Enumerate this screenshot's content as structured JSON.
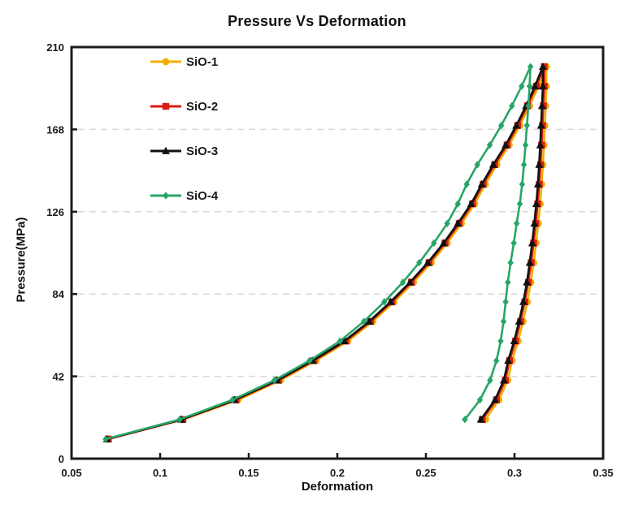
{
  "chart_data": {
    "type": "line",
    "title": "Pressure Vs Deformation",
    "xlabel": "Deformation",
    "ylabel": "Pressure(MPa)",
    "xlim": [
      0.05,
      0.35
    ],
    "ylim": [
      0,
      210
    ],
    "x_ticks": [
      0.05,
      0.1,
      0.15,
      0.2,
      0.25,
      0.3,
      0.35
    ],
    "x_tick_labels": [
      "0.05",
      "0.1",
      "0.15",
      "0.2",
      "0.25",
      "0.3",
      "0.35"
    ],
    "y_ticks": [
      0,
      42,
      84,
      126,
      168,
      210
    ],
    "y_tick_labels": [
      "0",
      "42",
      "84",
      "126",
      "168",
      "210"
    ],
    "grid": "horizontal-dashed",
    "grid_color": "#d9d9d9",
    "axis_color": "#1a1a1a",
    "legend_position": "upper-left-inside",
    "curve_shape": "loading-unloading hysteresis loop",
    "series": [
      {
        "name": "SiO-1",
        "color": "#F0B000",
        "marker": "circle",
        "points": [
          [
            0.0705,
            10
          ],
          [
            0.113,
            20
          ],
          [
            0.144,
            30
          ],
          [
            0.168,
            40
          ],
          [
            0.188,
            50
          ],
          [
            0.206,
            60
          ],
          [
            0.22,
            70
          ],
          [
            0.232,
            80
          ],
          [
            0.243,
            90
          ],
          [
            0.253,
            100
          ],
          [
            0.262,
            110
          ],
          [
            0.27,
            120
          ],
          [
            0.2775,
            130
          ],
          [
            0.2835,
            140
          ],
          [
            0.29,
            150
          ],
          [
            0.297,
            160
          ],
          [
            0.303,
            170
          ],
          [
            0.3085,
            180
          ],
          [
            0.3135,
            190
          ],
          [
            0.318,
            200
          ],
          [
            0.318,
            190
          ],
          [
            0.3176,
            180
          ],
          [
            0.3171,
            170
          ],
          [
            0.3166,
            160
          ],
          [
            0.316,
            150
          ],
          [
            0.3153,
            140
          ],
          [
            0.3145,
            130
          ],
          [
            0.3134,
            120
          ],
          [
            0.3122,
            110
          ],
          [
            0.3108,
            100
          ],
          [
            0.3092,
            90
          ],
          [
            0.3072,
            80
          ],
          [
            0.3048,
            70
          ],
          [
            0.302,
            60
          ],
          [
            0.2986,
            50
          ],
          [
            0.2962,
            40
          ],
          [
            0.2912,
            30
          ],
          [
            0.2836,
            20
          ]
        ]
      },
      {
        "name": "SiO-2",
        "color": "#D81E10",
        "marker": "square",
        "points": [
          [
            0.0708,
            10
          ],
          [
            0.1128,
            20
          ],
          [
            0.1428,
            30
          ],
          [
            0.1668,
            40
          ],
          [
            0.1868,
            50
          ],
          [
            0.2048,
            60
          ],
          [
            0.2188,
            70
          ],
          [
            0.2308,
            80
          ],
          [
            0.2418,
            90
          ],
          [
            0.2518,
            100
          ],
          [
            0.2608,
            110
          ],
          [
            0.2688,
            120
          ],
          [
            0.2763,
            130
          ],
          [
            0.2823,
            140
          ],
          [
            0.2888,
            150
          ],
          [
            0.2958,
            160
          ],
          [
            0.3018,
            170
          ],
          [
            0.3073,
            180
          ],
          [
            0.3123,
            190
          ],
          [
            0.3168,
            200
          ],
          [
            0.3168,
            190
          ],
          [
            0.3163,
            180
          ],
          [
            0.3158,
            170
          ],
          [
            0.3153,
            160
          ],
          [
            0.3147,
            150
          ],
          [
            0.314,
            140
          ],
          [
            0.3131,
            130
          ],
          [
            0.312,
            120
          ],
          [
            0.3108,
            110
          ],
          [
            0.3094,
            100
          ],
          [
            0.3078,
            90
          ],
          [
            0.3058,
            80
          ],
          [
            0.3034,
            70
          ],
          [
            0.3006,
            60
          ],
          [
            0.2972,
            50
          ],
          [
            0.2948,
            40
          ],
          [
            0.2898,
            30
          ],
          [
            0.2818,
            20
          ]
        ]
      },
      {
        "name": "SiO-3",
        "color": "#111111",
        "marker": "triangle",
        "points": [
          [
            0.07,
            10
          ],
          [
            0.112,
            20
          ],
          [
            0.142,
            30
          ],
          [
            0.166,
            40
          ],
          [
            0.186,
            50
          ],
          [
            0.204,
            60
          ],
          [
            0.218,
            70
          ],
          [
            0.23,
            80
          ],
          [
            0.241,
            90
          ],
          [
            0.251,
            100
          ],
          [
            0.26,
            110
          ],
          [
            0.268,
            120
          ],
          [
            0.2755,
            130
          ],
          [
            0.2815,
            140
          ],
          [
            0.288,
            150
          ],
          [
            0.295,
            160
          ],
          [
            0.301,
            170
          ],
          [
            0.3065,
            180
          ],
          [
            0.3115,
            190
          ],
          [
            0.316,
            200
          ],
          [
            0.316,
            190
          ],
          [
            0.3155,
            180
          ],
          [
            0.315,
            170
          ],
          [
            0.3145,
            160
          ],
          [
            0.3139,
            150
          ],
          [
            0.3132,
            140
          ],
          [
            0.3123,
            130
          ],
          [
            0.3112,
            120
          ],
          [
            0.31,
            110
          ],
          [
            0.3086,
            100
          ],
          [
            0.307,
            90
          ],
          [
            0.305,
            80
          ],
          [
            0.3026,
            70
          ],
          [
            0.2998,
            60
          ],
          [
            0.2964,
            50
          ],
          [
            0.294,
            40
          ],
          [
            0.289,
            30
          ],
          [
            0.281,
            20
          ]
        ]
      },
      {
        "name": "SiO-4",
        "color": "#27A567",
        "marker": "diamond",
        "points": [
          [
            0.0693,
            10
          ],
          [
            0.111,
            20
          ],
          [
            0.1408,
            30
          ],
          [
            0.1645,
            40
          ],
          [
            0.1843,
            50
          ],
          [
            0.2015,
            60
          ],
          [
            0.215,
            70
          ],
          [
            0.2265,
            80
          ],
          [
            0.237,
            90
          ],
          [
            0.2462,
            100
          ],
          [
            0.2545,
            110
          ],
          [
            0.262,
            120
          ],
          [
            0.268,
            130
          ],
          [
            0.273,
            140
          ],
          [
            0.279,
            150
          ],
          [
            0.286,
            160
          ],
          [
            0.2925,
            170
          ],
          [
            0.2985,
            180
          ],
          [
            0.304,
            190
          ],
          [
            0.309,
            200
          ],
          [
            0.3085,
            190
          ],
          [
            0.3078,
            180
          ],
          [
            0.307,
            170
          ],
          [
            0.3062,
            160
          ],
          [
            0.3053,
            150
          ],
          [
            0.3043,
            140
          ],
          [
            0.303,
            130
          ],
          [
            0.3012,
            120
          ],
          [
            0.2996,
            110
          ],
          [
            0.2978,
            100
          ],
          [
            0.2962,
            90
          ],
          [
            0.295,
            80
          ],
          [
            0.2938,
            70
          ],
          [
            0.2922,
            60
          ],
          [
            0.2898,
            50
          ],
          [
            0.2862,
            40
          ],
          [
            0.2805,
            30
          ],
          [
            0.272,
            20
          ]
        ]
      }
    ]
  }
}
